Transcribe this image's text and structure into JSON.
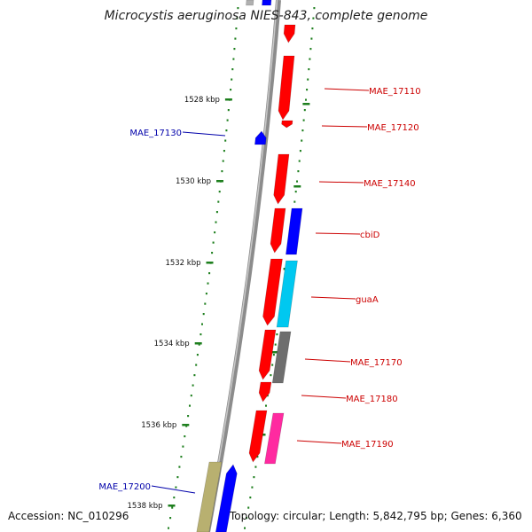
{
  "title": "Microcystis aeruginosa NIES-843, complete genome",
  "accession": "Accession: NC_010296",
  "topology": "Topology: circular; Length: 5,842,795 bp; Genes: 6,360",
  "colors": {
    "backbone": "#8c8c8c",
    "tick": "#1e7f1e",
    "forward_label": "#cc0000",
    "reverse_label": "#0000aa",
    "rna_blue": "#0000ff",
    "red": "#ff0000",
    "cyan": "#00c8f0",
    "gray": "#6e6e6e",
    "magenta": "#ff2aa0",
    "khaki": "#b8b070"
  },
  "kbp_labels": [
    "1528 kbp",
    "1530 kbp",
    "1532 kbp",
    "1534 kbp",
    "1536 kbp",
    "1538 kbp"
  ],
  "gene_labels": [
    "MAE_17110",
    "MAE_17120",
    "MAE_17130",
    "MAE_17140",
    "cbiD",
    "guaA",
    "MAE_17170",
    "MAE_17180",
    "MAE_17190",
    "MAE_17200"
  ]
}
